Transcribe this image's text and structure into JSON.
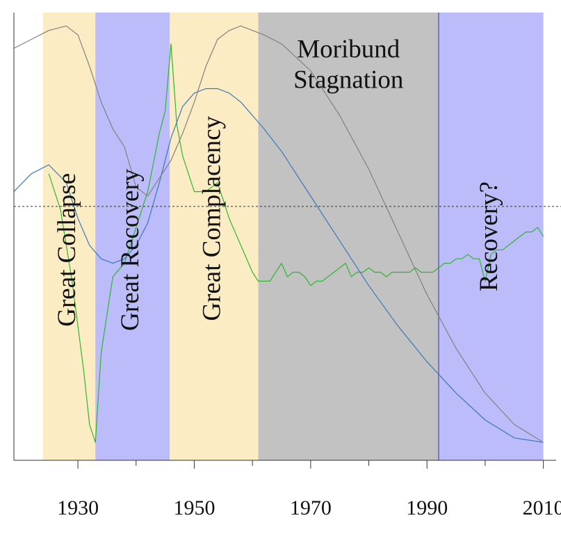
{
  "chart_data": {
    "type": "line",
    "title": "",
    "xlabel": "",
    "ylabel": "",
    "x_range": [
      1919,
      2011
    ],
    "y_range": [
      0,
      100
    ],
    "grid": false,
    "x_ticks": [
      {
        "value": 1930,
        "label": "1930"
      },
      {
        "value": 1950,
        "label": "1950"
      },
      {
        "value": 1970,
        "label": "1970"
      },
      {
        "value": 1990,
        "label": "1990"
      },
      {
        "value": 2010,
        "label": "2010"
      }
    ],
    "x_minor_ticks": [
      1940,
      1960,
      1980,
      2000
    ],
    "reference_line": {
      "y": 56.7,
      "style": "dashed"
    },
    "periods": [
      {
        "label": "Great Collapse",
        "start": 1924,
        "end": 1933,
        "color": "#fcecc4",
        "label_orientation": "vertical",
        "label_y": 47
      },
      {
        "label": "Great Recovery",
        "start": 1933,
        "end": 1945.8,
        "color": "#bcbcfa",
        "label_orientation": "vertical",
        "label_y": 47
      },
      {
        "label": "Great Complacency",
        "start": 1945.8,
        "end": 1961,
        "color": "#fcecc4",
        "label_orientation": "vertical",
        "label_y": 54
      },
      {
        "label": "Moribund\nStagnation",
        "start": 1961,
        "end": 1992,
        "color": "#c2c2c2",
        "label_orientation": "horizontal",
        "label_y": 90
      },
      {
        "label": "Recovery?",
        "start": 1992,
        "end": 2010,
        "color": "#bcbcfa",
        "label_orientation": "vertical",
        "label_y": 50
      }
    ],
    "series": [
      {
        "color": "#2db52d",
        "x": [
          1925,
          1927,
          1929,
          1931,
          1932,
          1933,
          1934,
          1936,
          1938,
          1940,
          1942,
          1944,
          1945,
          1946,
          1947,
          1948,
          1949,
          1950,
          1952,
          1954,
          1956,
          1958,
          1960,
          1961,
          1963,
          1964,
          1965,
          1966,
          1967,
          1968,
          1969,
          1970,
          1971,
          1972,
          1973,
          1974,
          1975,
          1976,
          1977,
          1978,
          1979,
          1980,
          1981,
          1982,
          1983,
          1984,
          1985,
          1986,
          1987,
          1988,
          1989,
          1990,
          1991,
          1992,
          1993,
          1994,
          1995,
          1996,
          1997,
          1998,
          1999,
          2000,
          2001,
          2002,
          2003,
          2004,
          2005,
          2006,
          2007,
          2008,
          2009,
          2010
        ],
        "y": [
          64,
          56,
          40,
          20,
          8,
          4,
          24,
          41,
          44,
          52,
          60,
          73,
          78,
          93,
          75,
          68,
          64,
          60,
          60,
          62,
          54,
          48,
          42,
          40,
          40,
          42,
          44,
          41,
          42,
          42,
          41,
          39,
          40,
          40,
          41,
          42,
          43,
          44,
          41,
          42,
          42,
          43,
          42,
          42,
          41,
          42,
          42,
          42,
          42,
          43,
          42,
          42,
          42,
          43,
          44,
          44,
          45,
          45,
          46,
          45,
          45,
          40,
          46,
          47,
          47,
          48,
          49,
          50,
          51,
          51,
          52,
          50
        ]
      },
      {
        "color": "#3a78b8",
        "x": [
          1919,
          1922,
          1925,
          1928,
          1930,
          1932,
          1934,
          1936,
          1938,
          1940,
          1942,
          1944,
          1946,
          1948,
          1950,
          1952,
          1954,
          1956,
          1958,
          1960,
          1962,
          1965,
          1970,
          1975,
          1980,
          1985,
          1990,
          1995,
          2000,
          2005,
          2010
        ],
        "y": [
          60,
          64,
          66,
          62,
          54,
          48,
          45,
          44,
          45,
          48,
          53,
          62,
          72,
          79,
          82,
          83,
          83,
          82,
          80,
          77,
          74,
          69,
          59,
          49,
          39,
          30,
          22,
          15,
          9,
          5,
          4
        ]
      },
      {
        "color": "#808080",
        "x": [
          1919,
          1922,
          1925,
          1928,
          1930,
          1932,
          1934,
          1936,
          1938,
          1940,
          1942,
          1944,
          1946,
          1948,
          1950,
          1952,
          1954,
          1956,
          1958,
          1960,
          1962,
          1965,
          1970,
          1975,
          1980,
          1985,
          1990,
          1995,
          2000,
          2005,
          2010
        ],
        "y": [
          92,
          94,
          96,
          97,
          95,
          88,
          80,
          74,
          70,
          61,
          59,
          63,
          67,
          73,
          80,
          88,
          94,
          96,
          97,
          96,
          95,
          93,
          87,
          77,
          65,
          51,
          37,
          25,
          15,
          8,
          4
        ]
      }
    ]
  }
}
